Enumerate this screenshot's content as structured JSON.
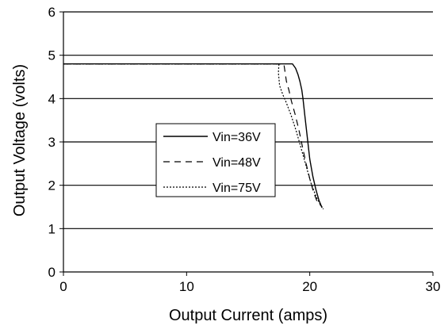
{
  "chart_data": {
    "type": "line",
    "title": "",
    "xlabel": "Output Current (amps)",
    "ylabel": "Output Voltage (volts)",
    "xlim": [
      0,
      30
    ],
    "ylim": [
      0,
      6
    ],
    "x_ticks": [
      "0",
      "10",
      "20",
      "30"
    ],
    "y_ticks": [
      "0",
      "1",
      "2",
      "3",
      "4",
      "5",
      "6"
    ],
    "grid": "horizontal",
    "legend_position": "center-left",
    "series": [
      {
        "name": "Vin=36V",
        "style": "solid",
        "x": [
          0,
          18.6,
          18.85,
          19.05,
          19.2,
          19.35,
          19.45,
          19.6,
          19.8,
          20.0,
          20.25,
          20.5,
          20.75,
          21.0
        ],
        "y": [
          4.8,
          4.8,
          4.7,
          4.55,
          4.4,
          4.2,
          4.0,
          3.6,
          3.1,
          2.6,
          2.2,
          1.9,
          1.65,
          1.48
        ]
      },
      {
        "name": "Vin=48V",
        "style": "dashed",
        "x": [
          0,
          17.9,
          18.0,
          18.1,
          18.3,
          18.5,
          18.8,
          19.1,
          19.4,
          19.7,
          20.0,
          20.3,
          20.6,
          21.0
        ],
        "y": [
          4.8,
          4.8,
          4.6,
          4.4,
          4.2,
          3.95,
          3.65,
          3.3,
          2.9,
          2.5,
          2.15,
          1.85,
          1.62,
          1.5
        ]
      },
      {
        "name": "Vin=75V",
        "style": "dotted",
        "x": [
          0,
          17.5,
          17.45,
          17.55,
          17.8,
          18.1,
          18.5,
          18.9,
          19.3,
          19.7,
          20.1,
          20.5,
          20.8,
          21.1
        ],
        "y": [
          4.8,
          4.8,
          4.6,
          4.3,
          4.1,
          3.9,
          3.6,
          3.25,
          2.85,
          2.45,
          2.05,
          1.75,
          1.58,
          1.45
        ]
      }
    ]
  },
  "colors": {
    "line": "#000000",
    "background": "#ffffff",
    "grid": "#000000"
  }
}
